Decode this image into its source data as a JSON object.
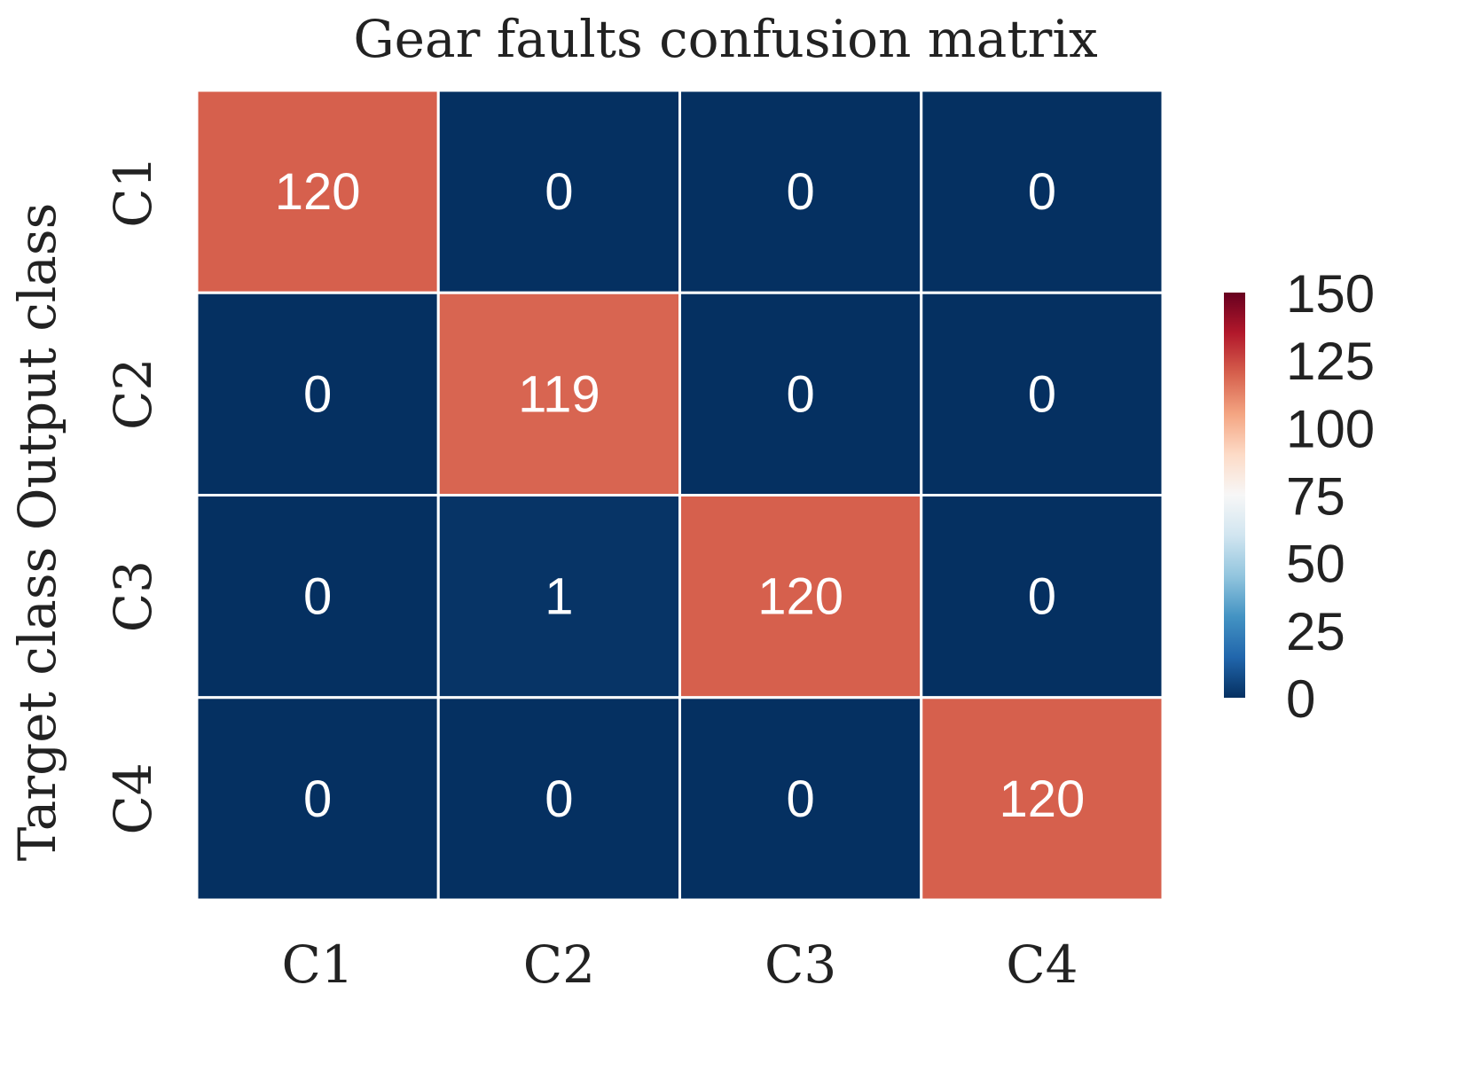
{
  "chart_data": {
    "type": "heatmap",
    "title": "Gear faults confusion matrix",
    "ylabel": "Target class Output class",
    "xlabel": "",
    "x_categories": [
      "C1",
      "C2",
      "C3",
      "C4"
    ],
    "y_categories": [
      "C1",
      "C2",
      "C3",
      "C4"
    ],
    "values": [
      [
        120,
        0,
        0,
        0
      ],
      [
        0,
        119,
        0,
        0
      ],
      [
        0,
        1,
        120,
        0
      ],
      [
        0,
        0,
        0,
        120
      ]
    ],
    "colorbar": {
      "min": 0,
      "max": 150,
      "ticks": [
        0,
        25,
        50,
        75,
        100,
        125,
        150
      ],
      "colormap": "RdBu_r",
      "stops": [
        "#053061",
        "#2166ac",
        "#4393c3",
        "#92c5de",
        "#d1e5f0",
        "#f7f7f7",
        "#fddbc7",
        "#f4a582",
        "#d6604d",
        "#b2182b",
        "#67001f"
      ]
    },
    "cell_text_color": "#ffffff",
    "grid_line_color": "#ffffff"
  }
}
